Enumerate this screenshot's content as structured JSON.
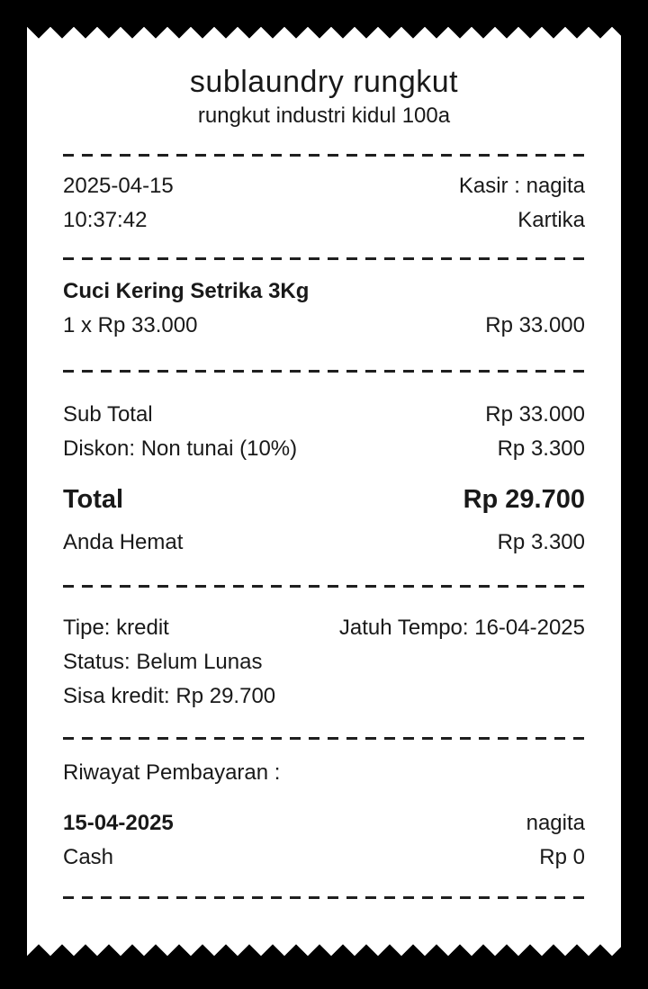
{
  "receipt": {
    "store": {
      "name": "sublaundry rungkut",
      "address": "rungkut industri kidul 100a"
    },
    "header": {
      "date": "2025-04-15",
      "time": "10:37:42",
      "cashier": "Kasir : nagita",
      "customer": "Kartika"
    },
    "item": {
      "name": "Cuci Kering Setrika 3Kg",
      "qty_price": "1 x Rp 33.000",
      "amount": "Rp 33.000"
    },
    "summary": {
      "subtotal_label": "Sub Total",
      "subtotal_value": "Rp 33.000",
      "discount_label": "Diskon: Non tunai (10%)",
      "discount_value": "Rp 3.300",
      "total_label": "Total",
      "total_value": "Rp 29.700",
      "savings_label": "Anda Hemat",
      "savings_value": "Rp 3.300"
    },
    "credit": {
      "type": "Tipe: kredit",
      "due": "Jatuh Tempo: 16-04-2025",
      "status": "Status: Belum Lunas",
      "remaining": "Sisa kredit: Rp 29.700"
    },
    "payment_history": {
      "title": "Riwayat Pembayaran :",
      "entries": [
        {
          "date": "15-04-2025",
          "cashier": "nagita",
          "method": "Cash",
          "amount": "Rp 0"
        }
      ]
    },
    "colors": {
      "paper": "#ffffff",
      "background": "#000000",
      "ink": "#191919"
    }
  }
}
